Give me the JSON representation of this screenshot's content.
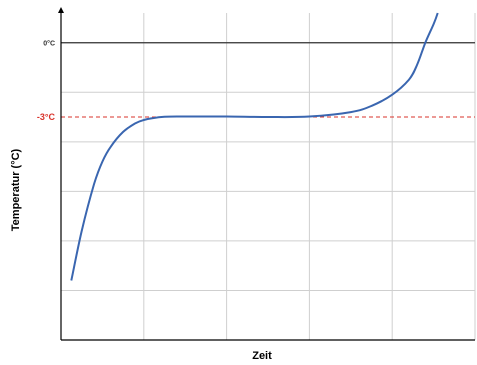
{
  "chart_data": {
    "type": "line",
    "title": "",
    "xlabel": "Zeit",
    "ylabel": "Temperatur (°C)",
    "grid": true,
    "legend": "none",
    "xlim": [
      0,
      100
    ],
    "ylim": [
      -12,
      1.2
    ],
    "reference_lines": [
      {
        "label": "0°C",
        "value": 0,
        "style": "solid",
        "color": "#333333"
      },
      {
        "label": "-3°C",
        "value": -3,
        "style": "dashed",
        "color": "#d9332b"
      }
    ],
    "series": [
      {
        "color": "#3a66b0",
        "x": [
          2.5,
          5,
          8,
          10,
          12,
          15,
          18,
          20,
          22,
          25,
          30,
          40,
          50,
          60,
          70,
          75,
          80,
          84,
          86,
          88,
          90,
          91
        ],
        "y": [
          -9.6,
          -7.6,
          -5.7,
          -4.8,
          -4.2,
          -3.6,
          -3.25,
          -3.12,
          -3.05,
          -2.99,
          -2.98,
          -2.98,
          -3.0,
          -2.98,
          -2.8,
          -2.55,
          -2.1,
          -1.5,
          -0.9,
          0.0,
          0.75,
          1.2
        ]
      }
    ]
  }
}
